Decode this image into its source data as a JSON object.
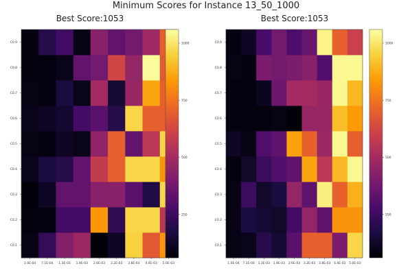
{
  "figure": {
    "title": "Minimum Scores for Instance 13_50_1000"
  },
  "colormap": {
    "name": "inferno",
    "stops": [
      "#000004",
      "#1b0c41",
      "#4a0c6b",
      "#781c6d",
      "#a52c60",
      "#cf4446",
      "#ed6925",
      "#fb9b06",
      "#f7d13d",
      "#fcffa4"
    ]
  },
  "chart_data": [
    {
      "type": "heatmap",
      "title": "Best Score:1053",
      "x_ticks": [
        "1.0E-04",
        "7.1E-04",
        "1.3E-03",
        "1.9E-03",
        "2.6E-03",
        "3.2E-03",
        "3.8E-03",
        "4.4E-03",
        "5.0E-03"
      ],
      "y_ticks": [
        "C0.1",
        "C0.2",
        "C0.3",
        "C0.4",
        "C0.5",
        "C0.6",
        "C0.7",
        "C0.8",
        "C0.9"
      ],
      "colorbar_ticks": [
        250,
        500,
        750,
        1000
      ],
      "zlim": [
        60,
        1060
      ],
      "values": [
        [
          90,
          230,
          420,
          480,
          70,
          120,
          950,
          680,
          820
        ],
        [
          80,
          80,
          270,
          270,
          830,
          220,
          960,
          960,
          560
        ],
        [
          70,
          120,
          340,
          340,
          430,
          430,
          320,
          180,
          960
        ],
        [
          100,
          170,
          200,
          340,
          580,
          700,
          960,
          960,
          820
        ],
        [
          90,
          80,
          120,
          100,
          450,
          700,
          340,
          560,
          960
        ],
        [
          100,
          120,
          140,
          270,
          320,
          200,
          960,
          700,
          700
        ],
        [
          90,
          80,
          170,
          100,
          500,
          150,
          470,
          860,
          700
        ],
        [
          80,
          80,
          100,
          340,
          380,
          620,
          460,
          1050,
          680
        ],
        [
          80,
          200,
          260,
          90,
          430,
          340,
          380,
          490,
          700
        ]
      ]
    },
    {
      "type": "heatmap",
      "title": "Best Score:1053",
      "x_ticks": [
        "1.0E-04",
        "7.1E-04",
        "1.3E-03",
        "1.9E-03",
        "2.6E-03",
        "3.2E-03",
        "3.8E-03",
        "4.4E-03",
        "5.0E-03"
      ],
      "y_ticks": [
        "C0.1",
        "C0.2",
        "C0.3",
        "C0.4",
        "C0.5",
        "C0.6",
        "C0.7",
        "C0.8",
        "C0.9"
      ],
      "colorbar_ticks": [
        250,
        500,
        750,
        1000
      ],
      "zlim": [
        60,
        1060
      ],
      "values": [
        [
          90,
          100,
          200,
          150,
          320,
          700,
          700,
          400,
          960
        ],
        [
          90,
          170,
          150,
          130,
          270,
          460,
          330,
          820,
          820
        ],
        [
          90,
          250,
          130,
          170,
          460,
          330,
          1020,
          700,
          880
        ],
        [
          80,
          130,
          250,
          300,
          330,
          860,
          560,
          900,
          1040
        ],
        [
          120,
          90,
          300,
          330,
          850,
          700,
          480,
          1040,
          700
        ],
        [
          80,
          80,
          80,
          90,
          70,
          470,
          470,
          910,
          840
        ],
        [
          80,
          80,
          110,
          360,
          500,
          500,
          470,
          1040,
          900
        ],
        [
          90,
          80,
          400,
          380,
          400,
          430,
          300,
          1040,
          1040
        ],
        [
          80,
          120,
          280,
          380,
          290,
          350,
          1030,
          700,
          600
        ]
      ]
    }
  ]
}
